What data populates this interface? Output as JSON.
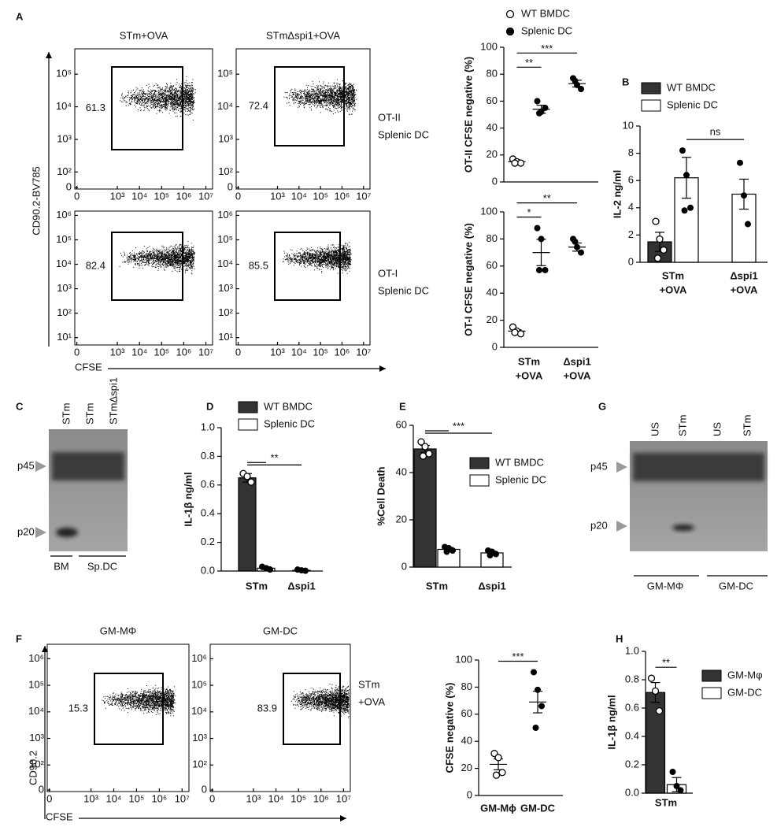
{
  "panel_labels": [
    "A",
    "B",
    "C",
    "D",
    "E",
    "F",
    "G",
    "H"
  ],
  "chart_data": [
    {
      "type": "flow",
      "ylabel": "CD90.2-BV785",
      "xlabel": "CFSE",
      "plots": [
        {
          "title": "STm+OVA",
          "gate": 61.3,
          "xlim": [
            12,
            20000000
          ],
          "ylim": [
            30,
            600000
          ],
          "xticks": [
            0,
            {
              "value": 1000,
              "label": "10³"
            },
            {
              "value": 10000,
              "label": "10⁴"
            },
            {
              "value": 100000,
              "label": "10⁵"
            },
            {
              "value": 1000000,
              "label": "10⁶"
            },
            {
              "value": 10000000,
              "label": "10⁷"
            }
          ],
          "yticks": [
            0,
            {
              "value": 100,
              "label": "10²"
            },
            {
              "value": 1000,
              "label": "10³"
            },
            {
              "value": 10000,
              "label": "10⁴"
            },
            {
              "value": 100000,
              "label": "10⁵"
            }
          ]
        },
        {
          "title": "STmΔspi1+OVA",
          "gate": 72.4,
          "side_label": [
            "OT-II",
            "Splenic DC"
          ],
          "xlim": [
            12,
            20000000
          ],
          "ylim": [
            30,
            600000
          ],
          "xticks": [
            0,
            {
              "value": 1000,
              "label": "10³"
            },
            {
              "value": 10000,
              "label": "10⁴"
            },
            {
              "value": 100000,
              "label": "10⁵"
            },
            {
              "value": 1000000,
              "label": "10⁶"
            },
            {
              "value": 10000000,
              "label": "10⁷"
            }
          ],
          "yticks": [
            0,
            {
              "value": 100,
              "label": "10²"
            },
            {
              "value": 1000,
              "label": "10³"
            },
            {
              "value": 10000,
              "label": "10⁴"
            },
            {
              "value": 100000,
              "label": "10⁵"
            }
          ]
        },
        {
          "gate": 82.4,
          "xlim": [
            12,
            20000000
          ],
          "ylim": [
            5,
            1500000
          ],
          "xticks": [
            0,
            {
              "value": 1000,
              "label": "10³"
            },
            {
              "value": 10000,
              "label": "10⁴"
            },
            {
              "value": 100000,
              "label": "10⁵"
            },
            {
              "value": 1000000,
              "label": "10⁶"
            },
            {
              "value": 10000000,
              "label": "10⁷"
            }
          ],
          "yticks": [
            {
              "value": 10,
              "label": "10¹"
            },
            {
              "value": 100,
              "label": "10²"
            },
            {
              "value": 1000,
              "label": "10³"
            },
            {
              "value": 10000,
              "label": "10⁴"
            },
            {
              "value": 100000,
              "label": "10⁵"
            },
            {
              "value": 1000000,
              "label": "10⁶"
            }
          ]
        },
        {
          "gate": 85.5,
          "side_label": [
            "OT-I",
            "Splenic DC"
          ],
          "xlim": [
            12,
            20000000
          ],
          "ylim": [
            5,
            1500000
          ],
          "xticks": [
            0,
            {
              "value": 1000,
              "label": "10³"
            },
            {
              "value": 10000,
              "label": "10⁴"
            },
            {
              "value": 100000,
              "label": "10⁵"
            },
            {
              "value": 1000000,
              "label": "10⁶"
            },
            {
              "value": 10000000,
              "label": "10⁷"
            }
          ],
          "yticks": [
            {
              "value": 10,
              "label": "10¹"
            },
            {
              "value": 100,
              "label": "10²"
            },
            {
              "value": 1000,
              "label": "10³"
            },
            {
              "value": 10000,
              "label": "10⁴"
            },
            {
              "value": 100000,
              "label": "10⁵"
            },
            {
              "value": 1000000,
              "label": "10⁶"
            }
          ]
        }
      ]
    },
    {
      "type": "dot",
      "ylabel": "OT-II CFSE negative (%)",
      "ylim": [
        0,
        100
      ],
      "yticks": [
        0,
        20,
        40,
        60,
        80,
        100
      ],
      "categories": [
        null,
        null
      ],
      "series": [
        {
          "name": "WT BMDC",
          "marker": "open",
          "values": [
            {
              "mean": 15,
              "sem": 1,
              "points": [
                17,
                15,
                14,
                14
              ]
            },
            null
          ]
        },
        {
          "name": "Splenic DC",
          "marker": "filled",
          "values": [
            {
              "mean": 54,
              "sem": 3,
              "points": [
                60,
                52,
                55,
                51
              ]
            },
            {
              "mean": 73,
              "sem": 2.5,
              "points": [
                77,
                72,
                69,
                75
              ]
            }
          ]
        }
      ],
      "significance": [
        {
          "label": "**",
          "spans": [
            [
              [
                0,
                0
              ],
              [
                1,
                0
              ]
            ]
          ]
        },
        {
          "label": "***",
          "spans": [
            [
              [
                0,
                0
              ],
              [
                1,
                1
              ]
            ]
          ]
        }
      ]
    },
    {
      "type": "dot",
      "ylabel": "OT-I CFSE negative (%)",
      "ylim": [
        0,
        100
      ],
      "yticks": [
        0,
        20,
        40,
        60,
        80,
        100
      ],
      "categories": [
        [
          "STm",
          "+OVA"
        ],
        [
          "Δspi1",
          "+OVA"
        ]
      ],
      "series": [
        {
          "marker": "open",
          "values": [
            {
              "mean": 12,
              "sem": 1,
              "points": [
                15,
                12,
                10,
                11
              ]
            },
            null
          ]
        },
        {
          "marker": "filled",
          "values": [
            {
              "mean": 70,
              "sem": 9.7,
              "points": [
                88,
                80,
                57,
                57
              ]
            },
            {
              "mean": 74,
              "sem": 3,
              "points": [
                80,
                74,
                70,
                78
              ]
            }
          ]
        }
      ],
      "significance": [
        {
          "label": "*",
          "spans": [
            [
              [
                0,
                0
              ],
              [
                1,
                0
              ]
            ]
          ]
        },
        {
          "label": "**",
          "spans": [
            [
              [
                0,
                0
              ],
              [
                1,
                1
              ]
            ]
          ]
        }
      ]
    },
    {
      "type": "bar",
      "ylabel": "IL-2 ng/ml",
      "ylim": [
        0,
        10
      ],
      "yticks": [
        0,
        2,
        4,
        6,
        8,
        10
      ],
      "categories": [
        [
          "STm",
          "+OVA"
        ],
        [
          "Δspi1",
          "+OVA"
        ]
      ],
      "series": [
        {
          "name": "WT BMDC",
          "color": "#333333",
          "marker": "open",
          "values": [
            {
              "mean": 1.5,
              "sem": 0.7,
              "points": [
                3.0,
                1.7,
                0.9,
                0.3
              ]
            },
            null
          ]
        },
        {
          "name": "Splenic DC",
          "color": "#ffffff",
          "marker": "filled",
          "values": [
            {
              "mean": 6.2,
              "sem": 1.5,
              "points": [
                8.2,
                6.4,
                4.0,
                3.8
              ]
            },
            {
              "mean": 5.0,
              "sem": 1.1,
              "points": [
                7.3,
                4.9,
                2.8
              ]
            }
          ]
        }
      ],
      "significance": [
        {
          "label": "ns",
          "spans": [
            [
              [
                1,
                0
              ],
              [
                1,
                1
              ]
            ]
          ]
        }
      ]
    },
    {
      "type": "bar",
      "ylabel": "IL-1β ng/ml",
      "ylim": [
        0,
        1
      ],
      "yticks": [
        {
          "value": 0,
          "label": "0.0"
        },
        0.2,
        0.4,
        0.6,
        0.8,
        {
          "value": 1,
          "label": "1.0"
        }
      ],
      "categories": [
        [
          "STm"
        ],
        [
          "Δspi1"
        ]
      ],
      "series": [
        {
          "name": "WT BMDC",
          "color": "#333333",
          "marker": "open",
          "values": [
            {
              "mean": 0.65,
              "sem": 0.03,
              "points": [
                0.68,
                0.66,
                0.62
              ]
            },
            null
          ]
        },
        {
          "name": "Splenic DC",
          "color": "#ffffff",
          "marker": "filled",
          "values": [
            {
              "mean": 0.02,
              "sem": 0.01,
              "points": [
                0.03,
                0.02,
                0.01
              ]
            },
            {
              "mean": 0.005,
              "sem": 0.003,
              "points": [
                0.01,
                0.005,
                0.002
              ]
            }
          ]
        }
      ],
      "significance": [
        {
          "label": "**",
          "spans": [
            [
              [
                0,
                0
              ],
              [
                1,
                0
              ]
            ],
            [
              [
                0,
                0
              ],
              [
                1,
                1
              ]
            ]
          ]
        }
      ]
    },
    {
      "type": "bar",
      "ylabel": "%Cell Death",
      "ylim": [
        0,
        60
      ],
      "yticks": [
        0,
        20,
        40,
        60
      ],
      "categories": [
        [
          "STm"
        ],
        [
          "Δspi1"
        ]
      ],
      "series": [
        {
          "name": "WT BMDC",
          "color": "#333333",
          "marker": "open",
          "values": [
            {
              "mean": 50,
              "sem": 1.5,
              "points": [
                53,
                51,
                48,
                47
              ]
            },
            null
          ]
        },
        {
          "name": "Splenic DC",
          "color": "#ffffff",
          "marker": "filled",
          "values": [
            {
              "mean": 7.5,
              "sem": 0.8,
              "points": [
                8.5,
                8,
                7,
                6.5
              ]
            },
            {
              "mean": 6,
              "sem": 0.7,
              "points": [
                7,
                6.5,
                5.5,
                5
              ]
            }
          ]
        }
      ],
      "significance": [
        {
          "label": "***",
          "spans": [
            [
              [
                0,
                0
              ],
              [
                1,
                0
              ]
            ],
            [
              [
                0,
                0
              ],
              [
                1,
                1
              ]
            ]
          ]
        }
      ]
    },
    {
      "type": "flow",
      "ylabel": "CD90.2",
      "xlabel": "CFSE",
      "plots": [
        {
          "title": "GM-MΦ",
          "gate": 15.3,
          "xlim": [
            12,
            20000000
          ],
          "ylim": [
            10,
            3500000
          ],
          "xticks": [
            0,
            {
              "value": 1000,
              "label": "10³"
            },
            {
              "value": 10000,
              "label": "10⁴"
            },
            {
              "value": 100000,
              "label": "10⁵"
            },
            {
              "value": 1000000,
              "label": "10⁶"
            },
            {
              "value": 10000000,
              "label": "10⁷"
            }
          ],
          "yticks": [
            0,
            {
              "value": 100,
              "label": "10²"
            },
            {
              "value": 1000,
              "label": "10³"
            },
            {
              "value": 10000,
              "label": "10⁴"
            },
            {
              "value": 100000,
              "label": "10⁵"
            },
            {
              "value": 1000000,
              "label": "10⁶"
            }
          ]
        },
        {
          "title": "GM-DC",
          "gate": 83.9,
          "side_label": [
            "STm",
            "+OVA"
          ],
          "xlim": [
            12,
            20000000
          ],
          "ylim": [
            10,
            3500000
          ],
          "xticks": [
            0,
            {
              "value": 1000,
              "label": "10³"
            },
            {
              "value": 10000,
              "label": "10⁴"
            },
            {
              "value": 100000,
              "label": "10⁵"
            },
            {
              "value": 1000000,
              "label": "10⁶"
            },
            {
              "value": 10000000,
              "label": "10⁷"
            }
          ],
          "yticks": [
            0,
            {
              "value": 100,
              "label": "10²"
            },
            {
              "value": 1000,
              "label": "10³"
            },
            {
              "value": 10000,
              "label": "10⁴"
            },
            {
              "value": 100000,
              "label": "10⁵"
            },
            {
              "value": 1000000,
              "label": "10⁶"
            }
          ]
        }
      ]
    },
    {
      "type": "dot",
      "ylabel": "CFSE negative (%)",
      "ylim": [
        0,
        100
      ],
      "yticks": [
        0,
        20,
        40,
        60,
        80,
        100
      ],
      "categories": [
        [
          "GM-Mϕ"
        ],
        [
          "GM-DC"
        ]
      ],
      "series": [
        {
          "marker": "open",
          "values": [
            {
              "mean": 23,
              "sem": 4,
              "points": [
                31,
                28,
                17,
                15
              ]
            },
            null
          ]
        },
        {
          "marker": "filled",
          "values": [
            null,
            {
              "mean": 69,
              "sem": 8,
              "points": [
                91,
                78,
                66,
                50
              ]
            }
          ]
        }
      ],
      "significance": [
        {
          "label": "***",
          "spans": [
            [
              [
                0,
                0
              ],
              [
                1,
                1
              ]
            ]
          ]
        }
      ]
    },
    {
      "type": "bar",
      "ylabel": "IL-1β ng/ml",
      "ylim": [
        0,
        1
      ],
      "yticks": [
        {
          "value": 0,
          "label": "0.0"
        },
        0.2,
        0.4,
        0.6,
        0.8,
        {
          "value": 1,
          "label": "1.0"
        }
      ],
      "categories": [
        [
          "STm"
        ]
      ],
      "series": [
        {
          "name": "GM-Mφ",
          "color": "#333333",
          "marker": "open",
          "values": [
            {
              "mean": 0.71,
              "sem": 0.07,
              "points": [
                0.81,
                0.72,
                0.58
              ]
            }
          ]
        },
        {
          "name": "GM-DC",
          "color": "#ffffff",
          "marker": "filled",
          "values": [
            {
              "mean": 0.06,
              "sem": 0.05,
              "points": [
                0.15,
                0.05,
                0.02
              ]
            }
          ]
        }
      ],
      "significance": [
        {
          "label": "**",
          "spans": [
            [
              [
                0,
                0
              ],
              [
                1,
                0
              ]
            ]
          ]
        }
      ]
    }
  ],
  "blots": [
    {
      "lanes": [
        "STm",
        "STm",
        "STmΔspi1"
      ],
      "markers": [
        "p45",
        "p20"
      ],
      "groups": [
        "BM",
        "Sp.DC"
      ]
    },
    {
      "lanes": [
        "US",
        "STm",
        "US",
        "STm"
      ],
      "markers": [
        "p45",
        "p20"
      ],
      "groups": [
        "GM-MΦ",
        "GM-DC"
      ]
    }
  ]
}
